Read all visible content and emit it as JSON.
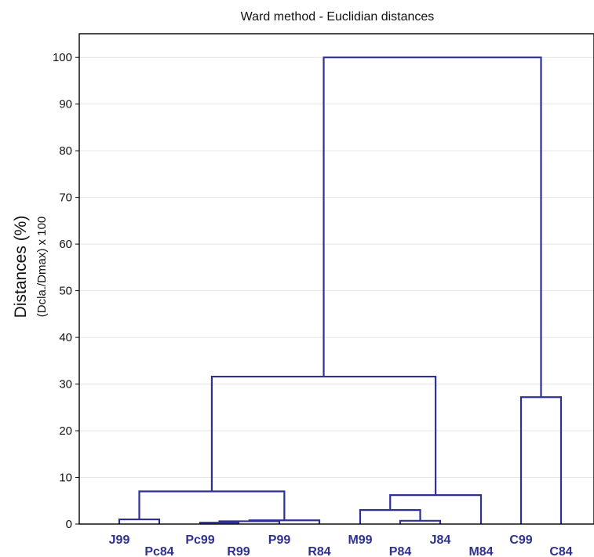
{
  "chart_data": {
    "type": "dendrogram",
    "title": "Ward method - Euclidian distances",
    "ylabel": "Distances (%)",
    "ylabel_sub": "(Dcla./Dmax) x 100",
    "ylim": [
      0,
      105
    ],
    "yticks": [
      0,
      10,
      20,
      30,
      40,
      50,
      60,
      70,
      80,
      90,
      100
    ],
    "grid": true,
    "leaves": [
      "J99",
      "Pc84",
      "Pc99",
      "R99",
      "P99",
      "R84",
      "M99",
      "P84",
      "J84",
      "M84",
      "C99",
      "C84"
    ],
    "merges": [
      {
        "left": "Pc99",
        "right": "R99",
        "height": 0.3
      },
      {
        "left": "Pc99+R99",
        "right": "P99",
        "height": 0.6
      },
      {
        "left": "Pc99+R99+P99",
        "right": "R84",
        "height": 0.8
      },
      {
        "left": "P84",
        "right": "J84",
        "height": 0.7
      },
      {
        "left": "J99",
        "right": "Pc84",
        "height": 1.0
      },
      {
        "left": "M99",
        "right": "P84+J84",
        "height": 3.0
      },
      {
        "left": "M99+P84+J84",
        "right": "M84",
        "height": 6.2
      },
      {
        "left": "J99+Pc84",
        "right": "Pc99+R99+P99+R84",
        "height": 7.0
      },
      {
        "left": "C99",
        "right": "C84",
        "height": 27.2
      },
      {
        "left": "J99..R84",
        "right": "M99..M84",
        "height": 31.6
      },
      {
        "left": "J99..M84",
        "right": "C99+C84",
        "height": 100
      }
    ]
  }
}
